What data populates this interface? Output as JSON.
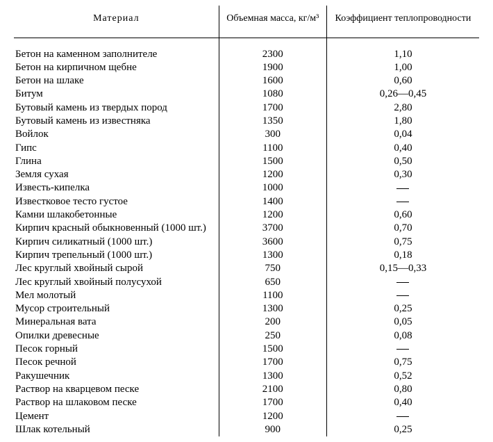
{
  "table": {
    "headers": {
      "material": "Материал",
      "density": "Объемная масса, кг/м³",
      "conductivity": "Коэффициент теплопроводности"
    },
    "rows": [
      {
        "material": "Бетон на каменном заполнителе",
        "density": "2300",
        "conductivity": "1,10"
      },
      {
        "material": "Бетон на кирпичном щебне",
        "density": "1900",
        "conductivity": "1,00"
      },
      {
        "material": "Бетон на шлаке",
        "density": "1600",
        "conductivity": "0,60"
      },
      {
        "material": "Битум",
        "density": "1080",
        "conductivity": "0,26—0,45"
      },
      {
        "material": "Бутовый камень из твердых пород",
        "density": "1700",
        "conductivity": "2,80"
      },
      {
        "material": "Бутовый камень из известняка",
        "density": "1350",
        "conductivity": "1,80"
      },
      {
        "material": "Войлок",
        "density": "300",
        "conductivity": "0,04"
      },
      {
        "material": "Гипс",
        "density": "1100",
        "conductivity": "0,40"
      },
      {
        "material": "Глина",
        "density": "1500",
        "conductivity": "0,50"
      },
      {
        "material": "Земля сухая",
        "density": "1200",
        "conductivity": "0,30"
      },
      {
        "material": "Известь-кипелка",
        "density": "1000",
        "conductivity": "—"
      },
      {
        "material": "Известковое тесто густое",
        "density": "1400",
        "conductivity": "—"
      },
      {
        "material": "Камни шлакобетонные",
        "density": "1200",
        "conductivity": "0,60"
      },
      {
        "material": "Кирпич красный обыкновенный (1000 шт.)",
        "density": "3700",
        "conductivity": "0,70"
      },
      {
        "material": "Кирпич силикатный (1000 шт.)",
        "density": "3600",
        "conductivity": "0,75"
      },
      {
        "material": "Кирпич трепельный (1000 шт.)",
        "density": "1300",
        "conductivity": "0,18"
      },
      {
        "material": "Лес круглый хвойный сырой",
        "density": "750",
        "conductivity": "0,15—0,33"
      },
      {
        "material": "Лес круглый хвойный полусухой",
        "density": "650",
        "conductivity": "—"
      },
      {
        "material": "Мел молотый",
        "density": "1100",
        "conductivity": "—"
      },
      {
        "material": "Мусор строительный",
        "density": "1300",
        "conductivity": "0,25"
      },
      {
        "material": "Минеральная вата",
        "density": "200",
        "conductivity": "0,05"
      },
      {
        "material": "Опилки древесные",
        "density": "250",
        "conductivity": "0,08"
      },
      {
        "material": "Песок горный",
        "density": "1500",
        "conductivity": "—"
      },
      {
        "material": "Песок речной",
        "density": "1700",
        "conductivity": "0,75"
      },
      {
        "material": "Ракушечник",
        "density": "1300",
        "conductivity": "0,52"
      },
      {
        "material": "Раствор на кварцевом песке",
        "density": "2100",
        "conductivity": "0,80"
      },
      {
        "material": "Раствор на шлаковом песке",
        "density": "1700",
        "conductivity": "0,40"
      },
      {
        "material": "Цемент",
        "density": "1200",
        "conductivity": "—"
      },
      {
        "material": "Шлак котельный",
        "density": "900",
        "conductivity": "0,25"
      }
    ]
  }
}
